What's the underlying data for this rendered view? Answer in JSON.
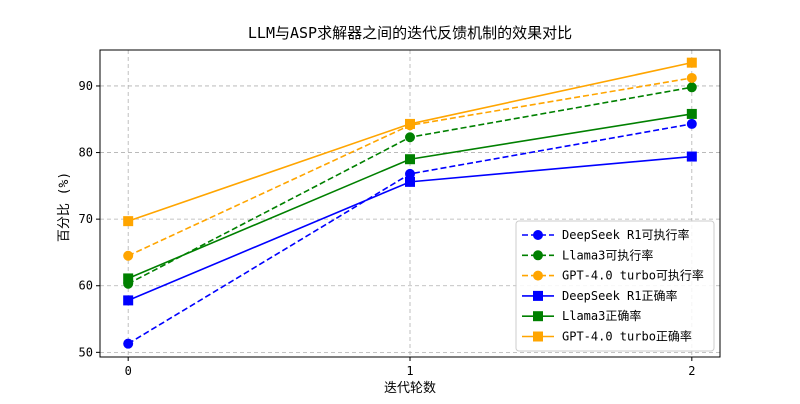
{
  "chart_data": {
    "type": "line",
    "title": "LLM与ASP求解器之间的迭代反馈机制的效果对比",
    "xlabel": "迭代轮数",
    "ylabel": "百分比 (%)",
    "x": [
      0,
      1,
      2
    ],
    "x_ticks": [
      "0",
      "1",
      "2"
    ],
    "y_ticks": [
      "50",
      "60",
      "70",
      "80",
      "90"
    ],
    "xlim": [
      -0.1,
      2.1
    ],
    "ylim": [
      49.3,
      95.4
    ],
    "grid": true,
    "legend_position": "lower-right",
    "series": [
      {
        "name": "DeepSeek R1可执行率",
        "values": [
          51.3,
          76.8,
          84.3
        ],
        "color": "#0000ff",
        "dash": true,
        "marker": "circle"
      },
      {
        "name": "Llama3可执行率",
        "values": [
          60.3,
          82.3,
          89.8
        ],
        "color": "#008000",
        "dash": true,
        "marker": "circle"
      },
      {
        "name": "GPT-4.0 turbo可执行率",
        "values": [
          64.5,
          84.1,
          91.2
        ],
        "color": "#ffa500",
        "dash": true,
        "marker": "circle"
      },
      {
        "name": "DeepSeek R1正确率",
        "values": [
          57.8,
          75.6,
          79.4
        ],
        "color": "#0000ff",
        "dash": false,
        "marker": "square"
      },
      {
        "name": "Llama3正确率",
        "values": [
          61.1,
          79.0,
          85.8
        ],
        "color": "#008000",
        "dash": false,
        "marker": "square"
      },
      {
        "name": "GPT-4.0 turbo正确率",
        "values": [
          69.7,
          84.3,
          93.5
        ],
        "color": "#ffa500",
        "dash": false,
        "marker": "square"
      }
    ]
  }
}
